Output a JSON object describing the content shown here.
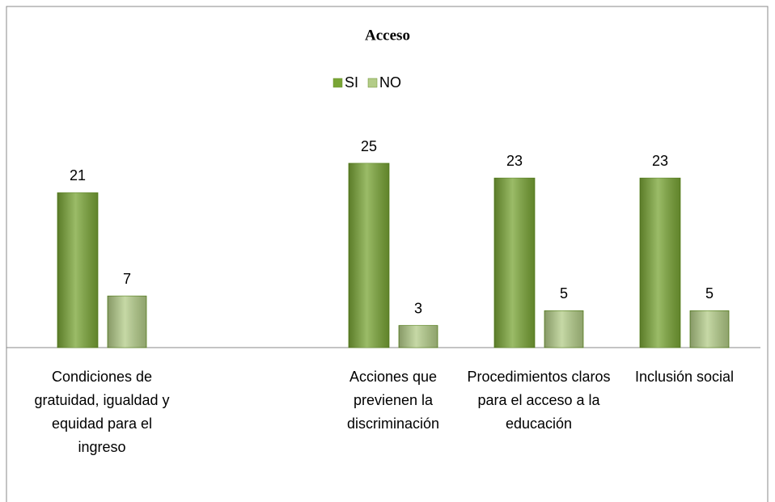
{
  "chart_data": {
    "type": "bar",
    "title": "Acceso",
    "categories": [
      "Condiciones de gratuidad, igualdad y equidad para el ingreso",
      null,
      "Acciones que previenen la discriminación",
      "Procedimientos claros para el acceso a la educación",
      "Inclusión social"
    ],
    "series": [
      {
        "name": "SI",
        "color": "#79a535",
        "values": [
          21,
          null,
          25,
          23,
          23
        ]
      },
      {
        "name": "NO",
        "color": "#b3cc88",
        "values": [
          7,
          null,
          3,
          5,
          5
        ]
      }
    ],
    "ylim": [
      0,
      25
    ],
    "legend": "top"
  }
}
